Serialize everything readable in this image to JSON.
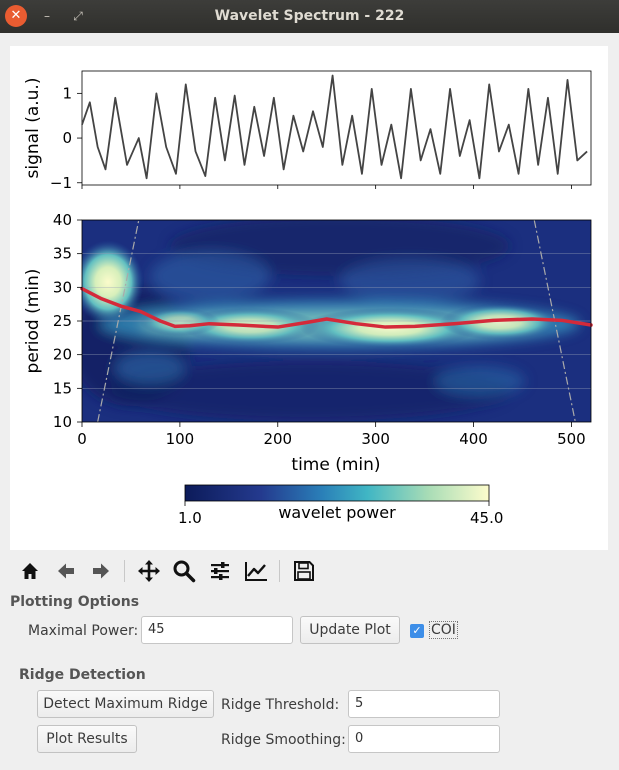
{
  "window": {
    "title": "Wavelet Spectrum - 222"
  },
  "titlebar": {
    "close_icon": "close-icon",
    "minimize_icon": "minimize-icon",
    "maximize_icon": "maximize-icon"
  },
  "chart_data": [
    {
      "type": "line",
      "ylabel": "signal (a.u.)",
      "xlim": [
        0,
        520
      ],
      "ylim": [
        -1.05,
        1.5
      ],
      "yticks": [
        "1",
        "0",
        "−1"
      ],
      "ytick_values": [
        1,
        0,
        -1
      ],
      "line_color": "#444444",
      "x": [
        0,
        8,
        16,
        24,
        34,
        46,
        58,
        66,
        76,
        86,
        96,
        106,
        116,
        126,
        136,
        146,
        156,
        166,
        176,
        186,
        196,
        206,
        216,
        226,
        236,
        246,
        256,
        266,
        276,
        286,
        296,
        306,
        316,
        326,
        336,
        346,
        356,
        366,
        376,
        386,
        396,
        406,
        416,
        426,
        436,
        446,
        456,
        466,
        476,
        486,
        496,
        506,
        516
      ],
      "y": [
        0.3,
        0.8,
        -0.2,
        -0.7,
        0.9,
        -0.6,
        0.0,
        -0.9,
        1.0,
        -0.2,
        -0.8,
        1.2,
        -0.3,
        -0.85,
        0.9,
        -0.5,
        0.95,
        -0.6,
        0.7,
        -0.4,
        0.9,
        -0.7,
        0.5,
        -0.3,
        0.6,
        -0.2,
        1.4,
        -0.6,
        0.5,
        -0.8,
        1.1,
        -0.6,
        0.3,
        -0.9,
        1.1,
        -0.5,
        0.2,
        -0.8,
        1.1,
        -0.4,
        0.4,
        -0.9,
        1.2,
        -0.3,
        0.3,
        -0.8,
        1.1,
        -0.6,
        0.9,
        -0.8,
        1.3,
        -0.5,
        -0.3
      ]
    },
    {
      "type": "heatmap",
      "xlabel": "time (min)",
      "ylabel": "period (min)",
      "xlim": [
        0,
        520
      ],
      "ylim": [
        10,
        40
      ],
      "xticks": [
        0,
        100,
        200,
        300,
        400,
        500
      ],
      "yticks": [
        10,
        15,
        20,
        25,
        30,
        35,
        40
      ],
      "ridge_color": "#d42a3a",
      "ridge": {
        "x": [
          0,
          20,
          40,
          60,
          80,
          95,
          110,
          130,
          160,
          200,
          230,
          250,
          280,
          310,
          340,
          380,
          420,
          460,
          490,
          520
        ],
        "y": [
          29.8,
          28.3,
          27.2,
          26.4,
          25.0,
          24.2,
          24.3,
          24.6,
          24.4,
          24.1,
          24.8,
          25.3,
          24.6,
          24.1,
          24.2,
          24.6,
          25.1,
          25.3,
          25.1,
          24.4
        ]
      },
      "coi_color": "#aaaaaa",
      "coi": {
        "left": [
          [
            16,
            10
          ],
          [
            58,
            40
          ]
        ],
        "right": [
          [
            462,
            40
          ],
          [
            504,
            10
          ]
        ]
      },
      "colorbar": {
        "label": "wavelet power",
        "min_label": "1.0",
        "max_label": "45.0"
      }
    }
  ],
  "toolbar": {
    "icons": [
      "home-icon",
      "back-icon",
      "forward-icon",
      "pan-icon",
      "zoom-icon",
      "configure-subplots-icon",
      "edit-axes-icon",
      "save-icon"
    ]
  },
  "plotting_options": {
    "title": "Plotting Options",
    "max_power_label": "Maximal Power:",
    "max_power_value": "45",
    "update_button": "Update Plot",
    "coi_label": "COI",
    "coi_checked": true
  },
  "ridge_detection": {
    "title": "Ridge Detection",
    "detect_button": "Detect Maximum Ridge",
    "threshold_label": "Ridge Threshold:",
    "threshold_value": "5",
    "plot_button": "Plot Results",
    "smoothing_label": "Ridge Smoothing:",
    "smoothing_value": "0"
  }
}
